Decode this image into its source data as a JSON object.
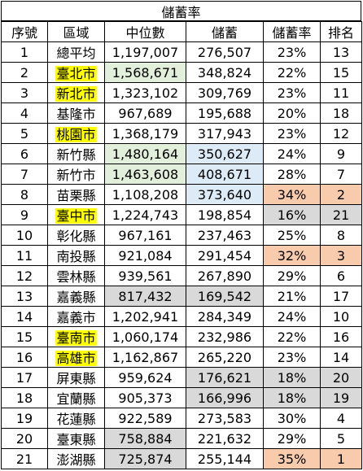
{
  "title": "儲蓄率",
  "headers": [
    "序號",
    "區域",
    "中位數",
    "儲蓄",
    "儲蓄率",
    "排名"
  ],
  "rows": [
    {
      "idx": "1",
      "region": "總平均",
      "median": "1,197,007",
      "savings": "276,507",
      "rate": "23%",
      "rank": "13",
      "region_hl": false,
      "median_bg": "",
      "savings_bg": "",
      "rate_bg": "",
      "rank_bg": ""
    },
    {
      "idx": "2",
      "region": "臺北市",
      "median": "1,568,671",
      "savings": "348,824",
      "rate": "22%",
      "rank": "15",
      "region_hl": true,
      "median_bg": "green",
      "savings_bg": "",
      "rate_bg": "",
      "rank_bg": ""
    },
    {
      "idx": "3",
      "region": "新北市",
      "median": "1,323,102",
      "savings": "309,769",
      "rate": "23%",
      "rank": "11",
      "region_hl": true,
      "median_bg": "",
      "savings_bg": "",
      "rate_bg": "",
      "rank_bg": ""
    },
    {
      "idx": "4",
      "region": "基隆市",
      "median": "967,689",
      "savings": "195,688",
      "rate": "20%",
      "rank": "18",
      "region_hl": false,
      "median_bg": "",
      "savings_bg": "",
      "rate_bg": "",
      "rank_bg": ""
    },
    {
      "idx": "5",
      "region": "桃園市",
      "median": "1,368,179",
      "savings": "317,943",
      "rate": "23%",
      "rank": "12",
      "region_hl": true,
      "median_bg": "",
      "savings_bg": "",
      "rate_bg": "",
      "rank_bg": ""
    },
    {
      "idx": "6",
      "region": "新竹縣",
      "median": "1,480,164",
      "savings": "350,627",
      "rate": "24%",
      "rank": "9",
      "region_hl": false,
      "median_bg": "green",
      "savings_bg": "blue",
      "rate_bg": "",
      "rank_bg": ""
    },
    {
      "idx": "7",
      "region": "新竹市",
      "median": "1,463,608",
      "savings": "408,671",
      "rate": "28%",
      "rank": "7",
      "region_hl": false,
      "median_bg": "green",
      "savings_bg": "blue",
      "rate_bg": "",
      "rank_bg": ""
    },
    {
      "idx": "8",
      "region": "苗栗縣",
      "median": "1,108,208",
      "savings": "373,640",
      "rate": "34%",
      "rank": "2",
      "region_hl": false,
      "median_bg": "",
      "savings_bg": "blue",
      "rate_bg": "orange",
      "rank_bg": "orange"
    },
    {
      "idx": "9",
      "region": "臺中市",
      "median": "1,224,743",
      "savings": "198,854",
      "rate": "16%",
      "rank": "21",
      "region_hl": true,
      "median_bg": "",
      "savings_bg": "",
      "rate_bg": "gray",
      "rank_bg": "gray"
    },
    {
      "idx": "10",
      "region": "彰化縣",
      "median": "967,161",
      "savings": "237,463",
      "rate": "25%",
      "rank": "8",
      "region_hl": false,
      "median_bg": "",
      "savings_bg": "",
      "rate_bg": "",
      "rank_bg": ""
    },
    {
      "idx": "11",
      "region": "南投縣",
      "median": "921,084",
      "savings": "291,454",
      "rate": "32%",
      "rank": "3",
      "region_hl": false,
      "median_bg": "",
      "savings_bg": "",
      "rate_bg": "orange",
      "rank_bg": "orange"
    },
    {
      "idx": "12",
      "region": "雲林縣",
      "median": "939,561",
      "savings": "267,890",
      "rate": "29%",
      "rank": "6",
      "region_hl": false,
      "median_bg": "",
      "savings_bg": "",
      "rate_bg": "",
      "rank_bg": ""
    },
    {
      "idx": "13",
      "region": "嘉義縣",
      "median": "817,432",
      "savings": "169,542",
      "rate": "21%",
      "rank": "17",
      "region_hl": false,
      "median_bg": "gray",
      "savings_bg": "gray",
      "rate_bg": "",
      "rank_bg": ""
    },
    {
      "idx": "14",
      "region": "嘉義市",
      "median": "1,202,941",
      "savings": "284,349",
      "rate": "24%",
      "rank": "10",
      "region_hl": false,
      "median_bg": "",
      "savings_bg": "",
      "rate_bg": "",
      "rank_bg": ""
    },
    {
      "idx": "15",
      "region": "臺南市",
      "median": "1,060,174",
      "savings": "232,986",
      "rate": "22%",
      "rank": "16",
      "region_hl": true,
      "median_bg": "",
      "savings_bg": "",
      "rate_bg": "",
      "rank_bg": ""
    },
    {
      "idx": "16",
      "region": "高雄市",
      "median": "1,162,867",
      "savings": "265,220",
      "rate": "23%",
      "rank": "14",
      "region_hl": true,
      "median_bg": "",
      "savings_bg": "",
      "rate_bg": "",
      "rank_bg": ""
    },
    {
      "idx": "17",
      "region": "屏東縣",
      "median": "959,624",
      "savings": "176,621",
      "rate": "18%",
      "rank": "20",
      "region_hl": false,
      "median_bg": "",
      "savings_bg": "gray",
      "rate_bg": "gray",
      "rank_bg": "gray"
    },
    {
      "idx": "18",
      "region": "宜蘭縣",
      "median": "905,373",
      "savings": "166,996",
      "rate": "18%",
      "rank": "19",
      "region_hl": false,
      "median_bg": "",
      "savings_bg": "gray",
      "rate_bg": "gray",
      "rank_bg": "gray"
    },
    {
      "idx": "19",
      "region": "花蓮縣",
      "median": "922,589",
      "savings": "273,583",
      "rate": "30%",
      "rank": "4",
      "region_hl": false,
      "median_bg": "",
      "savings_bg": "",
      "rate_bg": "",
      "rank_bg": ""
    },
    {
      "idx": "20",
      "region": "臺東縣",
      "median": "758,884",
      "savings": "221,632",
      "rate": "29%",
      "rank": "5",
      "region_hl": false,
      "median_bg": "gray",
      "savings_bg": "",
      "rate_bg": "",
      "rank_bg": ""
    },
    {
      "idx": "21",
      "region": "澎湖縣",
      "median": "725,874",
      "savings": "255,144",
      "rate": "35%",
      "rank": "1",
      "region_hl": false,
      "median_bg": "gray",
      "savings_bg": "",
      "rate_bg": "orange",
      "rank_bg": "orange"
    }
  ],
  "colors": {
    "highlight_yellow": "#ffff00",
    "green": "#e2efda",
    "blue": "#ddebf7",
    "orange": "#f8cbad",
    "gray": "#d9d9d9"
  }
}
